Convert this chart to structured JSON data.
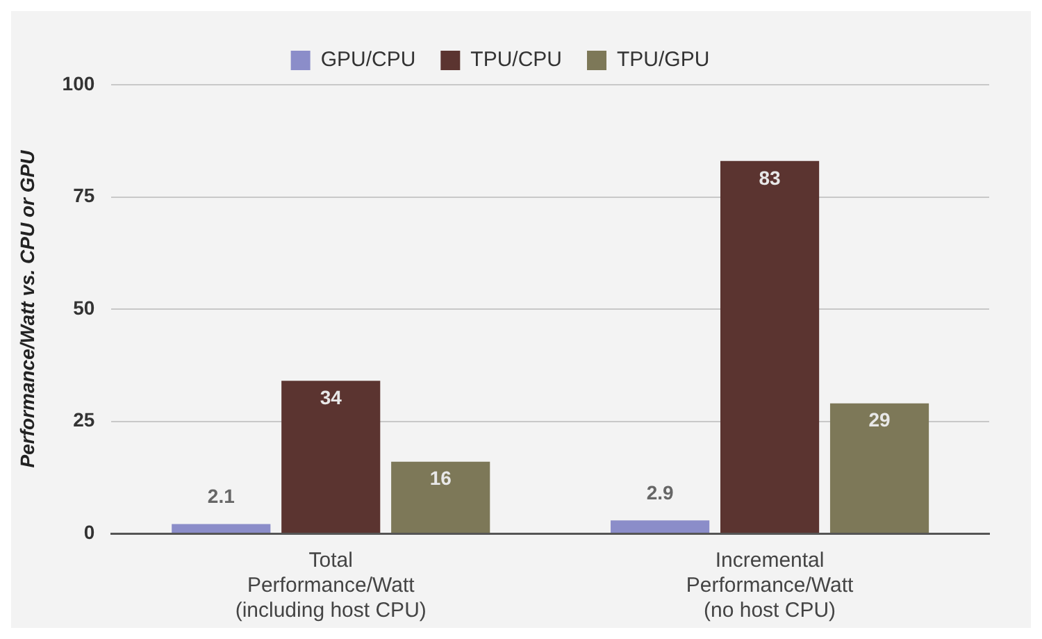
{
  "chart_data": {
    "type": "bar",
    "ylabel": "Performance/Watt vs. CPU or GPU",
    "categories": [
      "Total\nPerformance/Watt\n(including host CPU)",
      "Incremental\nPerformance/Watt\n(no host CPU)"
    ],
    "series": [
      {
        "name": "GPU/CPU",
        "color": "#8b8dc9",
        "values": [
          2.1,
          2.9
        ]
      },
      {
        "name": "TPU/CPU",
        "color": "#5b3430",
        "values": [
          34,
          83
        ]
      },
      {
        "name": "TPU/GPU",
        "color": "#7d7858",
        "values": [
          16,
          29
        ]
      }
    ],
    "ylim": [
      0,
      100
    ],
    "yticks": [
      0,
      25,
      50,
      75,
      100
    ],
    "grid": "y",
    "legend": "top",
    "data_labels": true
  }
}
